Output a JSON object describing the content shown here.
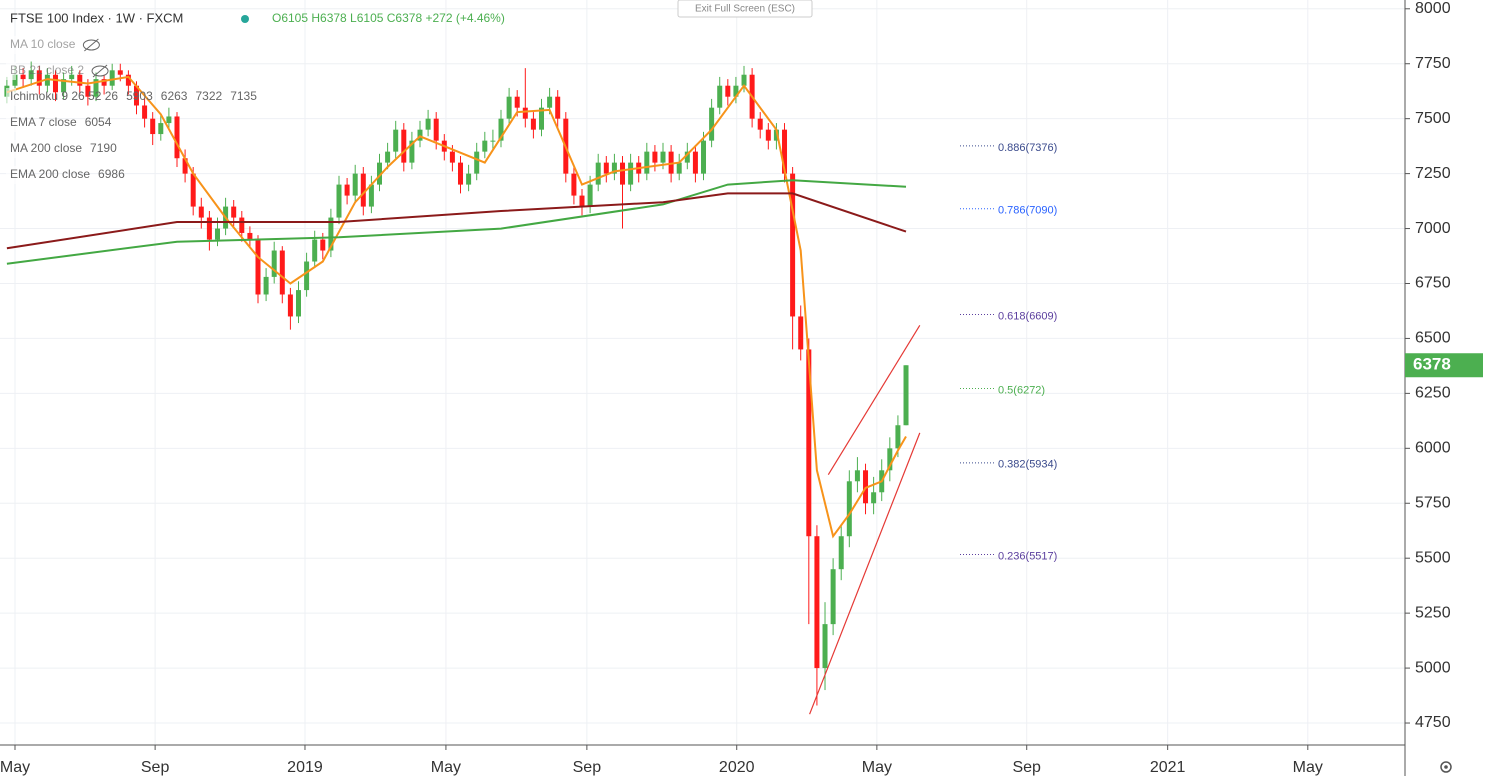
{
  "chart_data": {
    "type": "candlestick",
    "title": "FTSE 100 Index · 1W · FXCM",
    "ohlc_text": "O6105 H6378 L6105 C6378 +272 (+4.46%)",
    "button": "Exit Full Screen (ESC)",
    "up_color": "#4caf50",
    "down_color": "#ff1a1a",
    "ylim": [
      4650,
      8040
    ],
    "yticks": [
      4750,
      5000,
      5250,
      5500,
      5750,
      6000,
      6250,
      6500,
      6750,
      7000,
      7250,
      7500,
      7750,
      8000
    ],
    "xlim": [
      -1.85,
      171.6
    ],
    "xticks": [
      {
        "value": 0,
        "label": "May"
      },
      {
        "value": 17.3,
        "label": "Sep"
      },
      {
        "value": 35.8,
        "label": "2019"
      },
      {
        "value": 53.2,
        "label": "May"
      },
      {
        "value": 70.6,
        "label": "Sep"
      },
      {
        "value": 89.1,
        "label": "2020"
      },
      {
        "value": 106.4,
        "label": "May"
      },
      {
        "value": 124.9,
        "label": "Sep"
      },
      {
        "value": 142.3,
        "label": "2021"
      },
      {
        "value": 159.6,
        "label": "May"
      }
    ],
    "grid": true,
    "x": [
      -1,
      0,
      1,
      2,
      3,
      4,
      5,
      6,
      7,
      8,
      9,
      10,
      11,
      12,
      13,
      14,
      15,
      16,
      17,
      18,
      19,
      20,
      21,
      22,
      23,
      24,
      25,
      26,
      27,
      28,
      29,
      30,
      31,
      32,
      33,
      34,
      35,
      36,
      37,
      38,
      39,
      40,
      41,
      42,
      43,
      44,
      45,
      46,
      47,
      48,
      49,
      50,
      51,
      52,
      53,
      54,
      55,
      56,
      57,
      58,
      59,
      60,
      61,
      62,
      63,
      64,
      65,
      66,
      67,
      68,
      69,
      70,
      71,
      72,
      73,
      74,
      75,
      76,
      77,
      78,
      79,
      80,
      81,
      82,
      83,
      84,
      85,
      86,
      87,
      88,
      89,
      90,
      91,
      92,
      93,
      94,
      95,
      96,
      97,
      98,
      99,
      100,
      101,
      102,
      103,
      104,
      105,
      106,
      107,
      108,
      109,
      110
    ],
    "candles": [
      [
        7600,
        7690,
        7570,
        7650
      ],
      [
        7650,
        7740,
        7620,
        7700
      ],
      [
        7700,
        7730,
        7640,
        7680
      ],
      [
        7680,
        7760,
        7650,
        7720
      ],
      [
        7720,
        7740,
        7610,
        7650
      ],
      [
        7650,
        7730,
        7620,
        7700
      ],
      [
        7700,
        7720,
        7580,
        7620
      ],
      [
        7620,
        7710,
        7590,
        7680
      ],
      [
        7680,
        7740,
        7650,
        7700
      ],
      [
        7700,
        7720,
        7610,
        7650
      ],
      [
        7650,
        7680,
        7560,
        7600
      ],
      [
        7600,
        7710,
        7580,
        7680
      ],
      [
        7680,
        7700,
        7610,
        7650
      ],
      [
        7650,
        7750,
        7630,
        7720
      ],
      [
        7720,
        7750,
        7670,
        7700
      ],
      [
        7700,
        7720,
        7610,
        7650
      ],
      [
        7650,
        7670,
        7520,
        7560
      ],
      [
        7560,
        7590,
        7460,
        7500
      ],
      [
        7500,
        7530,
        7380,
        7430
      ],
      [
        7430,
        7520,
        7400,
        7480
      ],
      [
        7480,
        7550,
        7450,
        7510
      ],
      [
        7510,
        7530,
        7280,
        7320
      ],
      [
        7320,
        7360,
        7210,
        7250
      ],
      [
        7250,
        7280,
        7060,
        7100
      ],
      [
        7100,
        7140,
        7000,
        7050
      ],
      [
        7050,
        7080,
        6900,
        6950
      ],
      [
        6950,
        7050,
        6920,
        7000
      ],
      [
        7000,
        7140,
        6970,
        7100
      ],
      [
        7100,
        7130,
        7010,
        7050
      ],
      [
        7050,
        7080,
        6940,
        6980
      ],
      [
        6980,
        7010,
        6910,
        6950
      ],
      [
        6950,
        6970,
        6660,
        6700
      ],
      [
        6700,
        6820,
        6670,
        6780
      ],
      [
        6780,
        6940,
        6750,
        6900
      ],
      [
        6900,
        6920,
        6660,
        6700
      ],
      [
        6700,
        6730,
        6540,
        6600
      ],
      [
        6600,
        6760,
        6570,
        6720
      ],
      [
        6720,
        6890,
        6690,
        6850
      ],
      [
        6850,
        6990,
        6820,
        6950
      ],
      [
        6950,
        6980,
        6860,
        6900
      ],
      [
        6900,
        7090,
        6870,
        7050
      ],
      [
        7050,
        7240,
        7020,
        7200
      ],
      [
        7200,
        7230,
        7110,
        7150
      ],
      [
        7150,
        7290,
        7120,
        7250
      ],
      [
        7250,
        7280,
        7060,
        7100
      ],
      [
        7100,
        7240,
        7070,
        7200
      ],
      [
        7200,
        7340,
        7170,
        7300
      ],
      [
        7300,
        7390,
        7270,
        7350
      ],
      [
        7350,
        7490,
        7320,
        7450
      ],
      [
        7450,
        7480,
        7260,
        7300
      ],
      [
        7300,
        7440,
        7270,
        7400
      ],
      [
        7400,
        7490,
        7370,
        7450
      ],
      [
        7450,
        7540,
        7420,
        7500
      ],
      [
        7500,
        7530,
        7360,
        7400
      ],
      [
        7400,
        7430,
        7310,
        7350
      ],
      [
        7350,
        7380,
        7260,
        7300
      ],
      [
        7300,
        7330,
        7160,
        7200
      ],
      [
        7200,
        7290,
        7170,
        7250
      ],
      [
        7250,
        7390,
        7220,
        7350
      ],
      [
        7350,
        7440,
        7320,
        7400
      ],
      [
        7400,
        7450,
        7360,
        7400
      ],
      [
        7400,
        7540,
        7370,
        7500
      ],
      [
        7500,
        7640,
        7470,
        7600
      ],
      [
        7600,
        7630,
        7510,
        7550
      ],
      [
        7550,
        7730,
        7460,
        7500
      ],
      [
        7500,
        7530,
        7410,
        7450
      ],
      [
        7450,
        7590,
        7420,
        7550
      ],
      [
        7550,
        7640,
        7520,
        7600
      ],
      [
        7600,
        7630,
        7460,
        7500
      ],
      [
        7500,
        7530,
        7210,
        7250
      ],
      [
        7250,
        7280,
        7110,
        7150
      ],
      [
        7150,
        7180,
        7060,
        7100
      ],
      [
        7100,
        7240,
        7070,
        7200
      ],
      [
        7200,
        7340,
        7170,
        7300
      ],
      [
        7300,
        7330,
        7210,
        7250
      ],
      [
        7250,
        7340,
        7220,
        7300
      ],
      [
        7300,
        7330,
        7000,
        7200
      ],
      [
        7200,
        7340,
        7170,
        7300
      ],
      [
        7300,
        7330,
        7210,
        7250
      ],
      [
        7250,
        7390,
        7220,
        7350
      ],
      [
        7350,
        7380,
        7260,
        7300
      ],
      [
        7300,
        7390,
        7270,
        7350
      ],
      [
        7350,
        7380,
        7210,
        7250
      ],
      [
        7250,
        7340,
        7220,
        7300
      ],
      [
        7300,
        7390,
        7270,
        7350
      ],
      [
        7350,
        7380,
        7210,
        7250
      ],
      [
        7250,
        7440,
        7220,
        7400
      ],
      [
        7400,
        7590,
        7370,
        7550
      ],
      [
        7550,
        7690,
        7520,
        7650
      ],
      [
        7650,
        7680,
        7560,
        7600
      ],
      [
        7600,
        7690,
        7570,
        7650
      ],
      [
        7650,
        7740,
        7620,
        7700
      ],
      [
        7700,
        7730,
        7460,
        7500
      ],
      [
        7500,
        7530,
        7410,
        7450
      ],
      [
        7450,
        7480,
        7360,
        7400
      ],
      [
        7400,
        7480,
        7360,
        7450
      ],
      [
        7450,
        7480,
        7210,
        7250
      ],
      [
        7250,
        7280,
        6450,
        6600
      ],
      [
        6600,
        6650,
        6400,
        6450
      ],
      [
        6450,
        6500,
        5200,
        5600
      ],
      [
        5600,
        5650,
        4830,
        5000
      ],
      [
        5000,
        5300,
        4900,
        5200
      ],
      [
        5200,
        5500,
        5150,
        5450
      ],
      [
        5450,
        5650,
        5400,
        5600
      ],
      [
        5600,
        5900,
        5550,
        5850
      ],
      [
        5850,
        5960,
        5800,
        5900
      ],
      [
        5900,
        5930,
        5700,
        5750
      ],
      [
        5750,
        5870,
        5700,
        5800
      ],
      [
        5800,
        5950,
        5760,
        5900
      ],
      [
        5900,
        6050,
        5850,
        6000
      ],
      [
        6000,
        6150,
        5960,
        6105
      ],
      [
        6105,
        6378,
        6105,
        6378
      ]
    ],
    "overlays": [
      {
        "name": "EMA 7 close",
        "color": "#f7931a",
        "x": [
          -1,
          4,
          9,
          14,
          18,
          22,
          26,
          30,
          34,
          38,
          42,
          46,
          50,
          54,
          58,
          62,
          66,
          70,
          74,
          78,
          82,
          86,
          90,
          94,
          97,
          99,
          101,
          103,
          105,
          107,
          109,
          110
        ],
        "values": [
          7620,
          7680,
          7660,
          7690,
          7520,
          7250,
          7050,
          6870,
          6750,
          6850,
          7120,
          7280,
          7420,
          7360,
          7300,
          7530,
          7540,
          7200,
          7260,
          7280,
          7300,
          7450,
          7650,
          7450,
          6900,
          5900,
          5600,
          5700,
          5820,
          5850,
          5990,
          6054
        ]
      },
      {
        "name": "MA 200 close",
        "color": "#43a843",
        "x": [
          -1,
          20,
          40,
          60,
          80,
          88,
          96,
          110
        ],
        "values": [
          6840,
          6940,
          6960,
          7000,
          7110,
          7200,
          7220,
          7190
        ]
      },
      {
        "name": "EMA 200 close",
        "color": "#8b1a1a",
        "x": [
          -1,
          20,
          40,
          60,
          80,
          88,
          96,
          110
        ],
        "values": [
          6910,
          7030,
          7030,
          7080,
          7120,
          7160,
          7160,
          6986
        ]
      }
    ],
    "trend_lines": [
      {
        "color": "#e53935",
        "x": [
          98.1,
          111.7
        ],
        "values": [
          4790,
          6070
        ]
      },
      {
        "color": "#e53935",
        "x": [
          100.4,
          111.7
        ],
        "values": [
          5880,
          6560
        ]
      }
    ],
    "fib_levels": [
      {
        "label": "0.886(7376)",
        "value": 7376,
        "color": "#3a4a8c"
      },
      {
        "label": "0.786(7090)",
        "value": 7090,
        "color": "#2962ff"
      },
      {
        "label": "0.618(6609)",
        "value": 6609,
        "color": "#5b3f9e"
      },
      {
        "label": "0.5(6272)",
        "value": 6272,
        "color": "#4caf50"
      },
      {
        "label": "0.382(5934)",
        "value": 5934,
        "color": "#3a4a8c"
      },
      {
        "label": "0.236(5517)",
        "value": 5517,
        "color": "#5b3f9e"
      }
    ],
    "legend": [
      {
        "name": "MA 10 close",
        "hidden": true
      },
      {
        "name": "BB 21 close 2",
        "hidden": true
      },
      {
        "name": "Ichimoku 9 26 52 26",
        "values": [
          5903,
          6263,
          7322,
          7135
        ],
        "colors": [
          "#2196f3",
          "#8b1a1a",
          "#43a843",
          "#e53935"
        ]
      },
      {
        "name": "EMA 7 close",
        "values": [
          6054
        ],
        "colors": [
          "#f7931a"
        ]
      },
      {
        "name": "MA 200 close",
        "values": [
          7190
        ],
        "colors": [
          "#43a843"
        ]
      },
      {
        "name": "EMA 200 close",
        "values": [
          6986
        ],
        "colors": [
          "#8b1a1a"
        ]
      }
    ],
    "last_price_color": "#4caf50"
  }
}
